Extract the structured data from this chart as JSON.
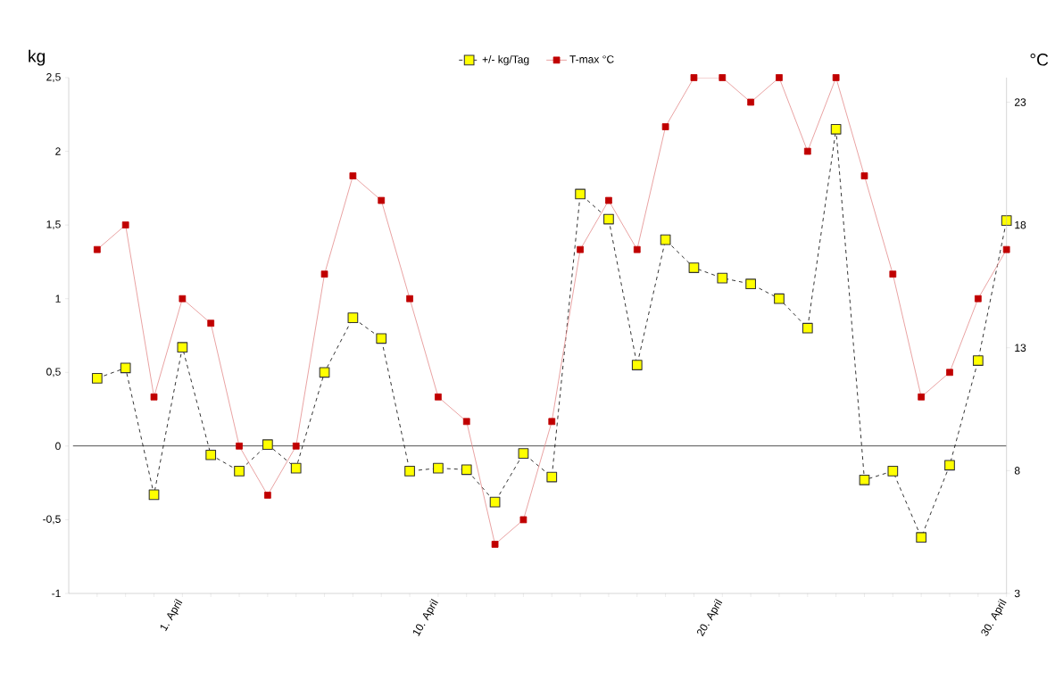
{
  "chart_data": {
    "type": "line",
    "categories": [
      null,
      null,
      null,
      "1. April",
      null,
      null,
      null,
      null,
      null,
      null,
      null,
      null,
      "10. April",
      null,
      null,
      null,
      null,
      null,
      null,
      null,
      null,
      null,
      "20. April",
      null,
      null,
      null,
      null,
      null,
      null,
      null,
      null,
      null,
      "30. April"
    ],
    "series": [
      {
        "name": "+/- kg/Tag",
        "color": "#ffff00",
        "line_style": "dashed",
        "values": [
          0.46,
          0.53,
          -0.33,
          0.67,
          -0.06,
          -0.17,
          0.01,
          -0.15,
          0.5,
          0.87,
          0.73,
          -0.17,
          -0.15,
          -0.16,
          -0.38,
          -0.05,
          -0.21,
          1.71,
          1.54,
          0.55,
          1.4,
          1.21,
          1.14,
          1.1,
          1.0,
          0.8,
          2.15,
          -0.23,
          -0.17,
          -0.62,
          -0.13,
          0.58,
          1.53
        ]
      },
      {
        "name": "T-max °C",
        "color": "#c00000",
        "line_style": "solid",
        "axis": "y2",
        "values": [
          17,
          18,
          11,
          15,
          14,
          9,
          7,
          9,
          16,
          20,
          19,
          15,
          11,
          10,
          5,
          6,
          10,
          17,
          19,
          17,
          22,
          24,
          24,
          23,
          24,
          21,
          24,
          20,
          16,
          11,
          12,
          15,
          17
        ]
      }
    ],
    "ylabel": "kg",
    "y2label": "°C",
    "ylim": [
      -1,
      2.5
    ],
    "yticks": [
      -1,
      {
        "value": -0.5,
        "label": "-0,5"
      },
      0,
      {
        "value": 0.5,
        "label": "0,5"
      },
      1,
      {
        "value": 1.5,
        "label": "1,5"
      },
      2,
      {
        "value": 2.5,
        "label": "2,5"
      }
    ],
    "y2lim": [
      3,
      24
    ],
    "y2ticks": [
      3,
      8,
      13,
      18,
      23
    ],
    "ref_lines": [
      {
        "axis": "y",
        "value": 0,
        "color": "#000000"
      }
    ],
    "marker": "square",
    "legend": "top",
    "grid": false
  }
}
